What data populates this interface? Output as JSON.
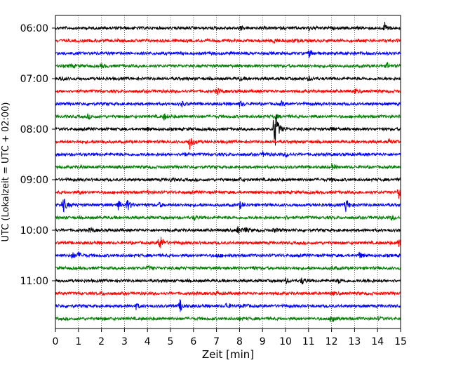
{
  "chart_data": {
    "type": "line",
    "xlabel": "Zeit  [min]",
    "ylabel": "UTC (Lokalzeit = UTC + 02:00)",
    "xlim": [
      0,
      15
    ],
    "x_ticks": [
      "0",
      "1",
      "2",
      "3",
      "4",
      "5",
      "6",
      "7",
      "8",
      "9",
      "10",
      "11",
      "12",
      "13",
      "14",
      "15"
    ],
    "y_ticks": [
      "06:00",
      "07:00",
      "08:00",
      "09:00",
      "10:00",
      "11:00"
    ],
    "grid_x": true,
    "trace_colors": [
      "#000000",
      "#ff0000",
      "#0000ff",
      "#008000"
    ],
    "traces": [
      {
        "start": "06:00",
        "events": [
          {
            "t": 8.0,
            "a": 3
          },
          {
            "t": 11.0,
            "a": 3
          },
          {
            "t": 14.3,
            "a": 8
          }
        ]
      },
      {
        "start": "06:15",
        "events": [
          {
            "t": 9.5,
            "a": 3
          },
          {
            "t": 10.3,
            "a": 2
          }
        ]
      },
      {
        "start": "06:30",
        "events": [
          {
            "t": 11.0,
            "a": 6
          },
          {
            "t": 12.7,
            "a": 2
          }
        ]
      },
      {
        "start": "06:45",
        "events": [
          {
            "t": 0.6,
            "a": 3
          },
          {
            "t": 2.0,
            "a": 3
          },
          {
            "t": 14.4,
            "a": 4
          }
        ]
      },
      {
        "start": "07:00",
        "events": [
          {
            "t": 0.2,
            "a": 3
          },
          {
            "t": 8.0,
            "a": 2
          },
          {
            "t": 11.0,
            "a": 3
          }
        ]
      },
      {
        "start": "07:15",
        "events": [
          {
            "t": 7.0,
            "a": 5
          },
          {
            "t": 13.0,
            "a": 2
          }
        ]
      },
      {
        "start": "07:30",
        "events": [
          {
            "t": 5.5,
            "a": 3
          },
          {
            "t": 8.0,
            "a": 4
          },
          {
            "t": 9.8,
            "a": 3
          }
        ]
      },
      {
        "start": "07:45",
        "events": [
          {
            "t": 1.4,
            "a": 3
          },
          {
            "t": 4.7,
            "a": 5
          },
          {
            "t": 9.5,
            "a": 4
          }
        ]
      },
      {
        "start": "08:00",
        "events": [
          {
            "t": 9.5,
            "a": 40
          },
          {
            "t": 4.0,
            "a": 2
          },
          {
            "t": 12.0,
            "a": 3
          }
        ]
      },
      {
        "start": "08:15",
        "events": [
          {
            "t": 5.8,
            "a": 13
          },
          {
            "t": 14.5,
            "a": 3
          },
          {
            "t": 2.0,
            "a": 2
          }
        ]
      },
      {
        "start": "08:30",
        "events": [
          {
            "t": 5.5,
            "a": 3
          },
          {
            "t": 9.0,
            "a": 3
          },
          {
            "t": 10.0,
            "a": 3
          }
        ]
      },
      {
        "start": "08:45",
        "events": [
          {
            "t": 1.1,
            "a": 2
          },
          {
            "t": 12.0,
            "a": 4
          }
        ]
      },
      {
        "start": "09:00",
        "events": [
          {
            "t": 5.0,
            "a": 2
          },
          {
            "t": 8.0,
            "a": 2
          },
          {
            "t": 12.0,
            "a": 2
          }
        ]
      },
      {
        "start": "09:15",
        "events": [
          {
            "t": 1.0,
            "a": 2
          },
          {
            "t": 4.0,
            "a": 2
          },
          {
            "t": 14.9,
            "a": 14
          }
        ]
      },
      {
        "start": "09:30",
        "events": [
          {
            "t": 0.3,
            "a": 14
          },
          {
            "t": 2.7,
            "a": 7
          },
          {
            "t": 3.1,
            "a": 9
          },
          {
            "t": 4.5,
            "a": 3
          },
          {
            "t": 8.0,
            "a": 5
          },
          {
            "t": 12.6,
            "a": 11
          }
        ]
      },
      {
        "start": "09:45",
        "events": [
          {
            "t": 6.0,
            "a": 3
          },
          {
            "t": 10.0,
            "a": 2
          },
          {
            "t": 14.6,
            "a": 3
          }
        ]
      },
      {
        "start": "10:00",
        "events": [
          {
            "t": 1.5,
            "a": 4
          },
          {
            "t": 7.9,
            "a": 6
          },
          {
            "t": 8.2,
            "a": 4
          },
          {
            "t": 9.5,
            "a": 3
          }
        ]
      },
      {
        "start": "10:15",
        "events": [
          {
            "t": 4.5,
            "a": 15
          },
          {
            "t": 14.9,
            "a": 8
          }
        ]
      },
      {
        "start": "10:30",
        "events": [
          {
            "t": 0.7,
            "a": 5
          },
          {
            "t": 1.0,
            "a": 4
          },
          {
            "t": 7.0,
            "a": 3
          },
          {
            "t": 13.2,
            "a": 4
          }
        ]
      },
      {
        "start": "10:45",
        "events": [
          {
            "t": 4.0,
            "a": 3
          },
          {
            "t": 8.5,
            "a": 3
          },
          {
            "t": 12.0,
            "a": 2
          }
        ]
      },
      {
        "start": "11:00",
        "events": [
          {
            "t": 10.0,
            "a": 3
          },
          {
            "t": 10.7,
            "a": 5
          },
          {
            "t": 12.3,
            "a": 3
          },
          {
            "t": 13.5,
            "a": 2
          }
        ]
      },
      {
        "start": "11:15",
        "events": [
          {
            "t": 2.0,
            "a": 2
          },
          {
            "t": 7.0,
            "a": 2
          },
          {
            "t": 12.0,
            "a": 2
          }
        ]
      },
      {
        "start": "11:30",
        "events": [
          {
            "t": 3.5,
            "a": 4
          },
          {
            "t": 5.4,
            "a": 9
          },
          {
            "t": 7.4,
            "a": 5
          },
          {
            "t": 8.2,
            "a": 3
          }
        ]
      },
      {
        "start": "11:45",
        "events": [
          {
            "t": 2.0,
            "a": 2
          },
          {
            "t": 8.0,
            "a": 2
          },
          {
            "t": 12.0,
            "a": 10
          },
          {
            "t": 14.0,
            "a": 2
          }
        ]
      }
    ]
  }
}
